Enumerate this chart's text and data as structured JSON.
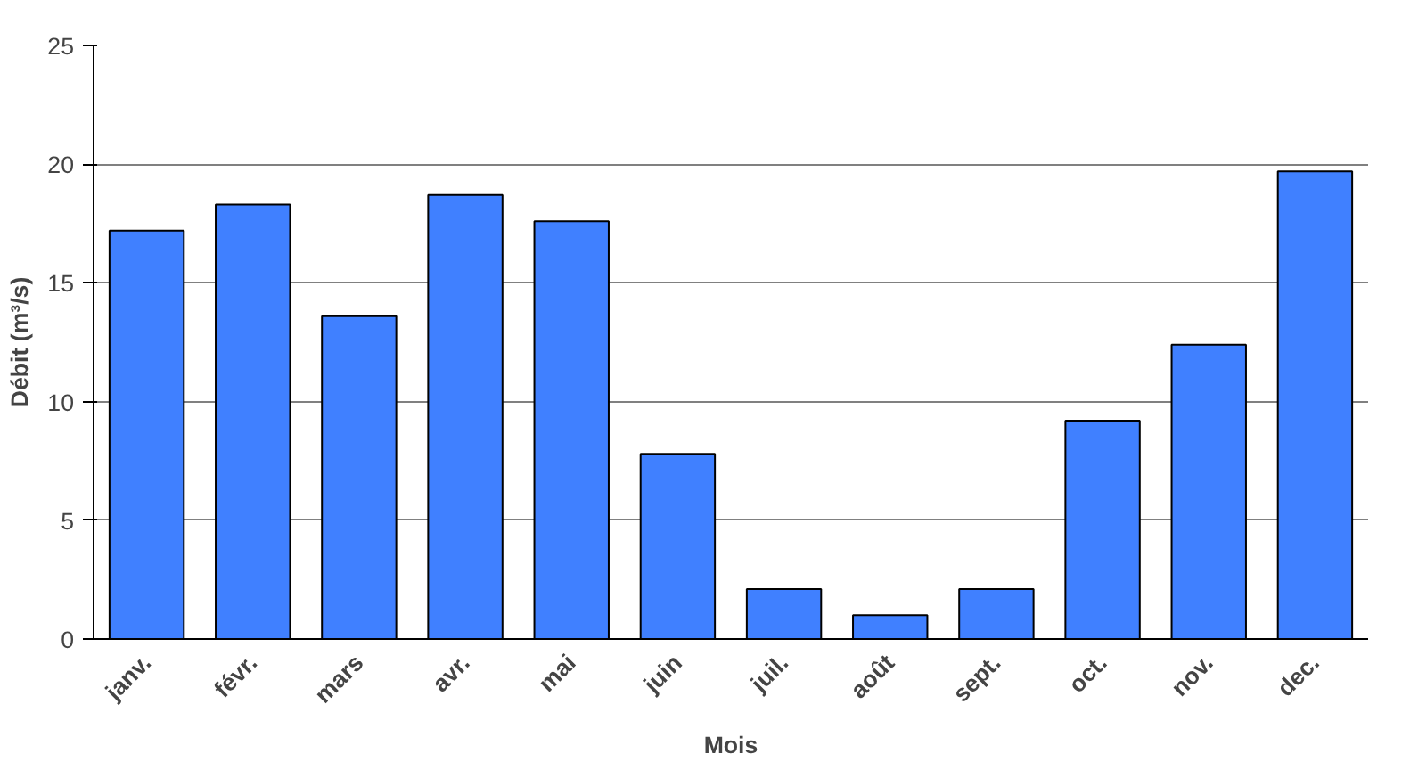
{
  "chart_data": {
    "type": "bar",
    "xlabel": "Mois",
    "ylabel": "Débit (m³/s)",
    "categories": [
      "janv.",
      "févr.",
      "mars",
      "avr.",
      "mai",
      "juin",
      "juil.",
      "août",
      "sept.",
      "oct.",
      "nov.",
      "dec."
    ],
    "values": [
      17.2,
      18.3,
      13.6,
      18.7,
      17.6,
      7.8,
      2.1,
      1.0,
      2.1,
      9.2,
      12.4,
      19.7
    ],
    "color": "#4080ff",
    "ylim": [
      0,
      25
    ],
    "yticks": [
      0,
      5,
      10,
      15,
      20,
      25
    ],
    "grid": "y"
  }
}
